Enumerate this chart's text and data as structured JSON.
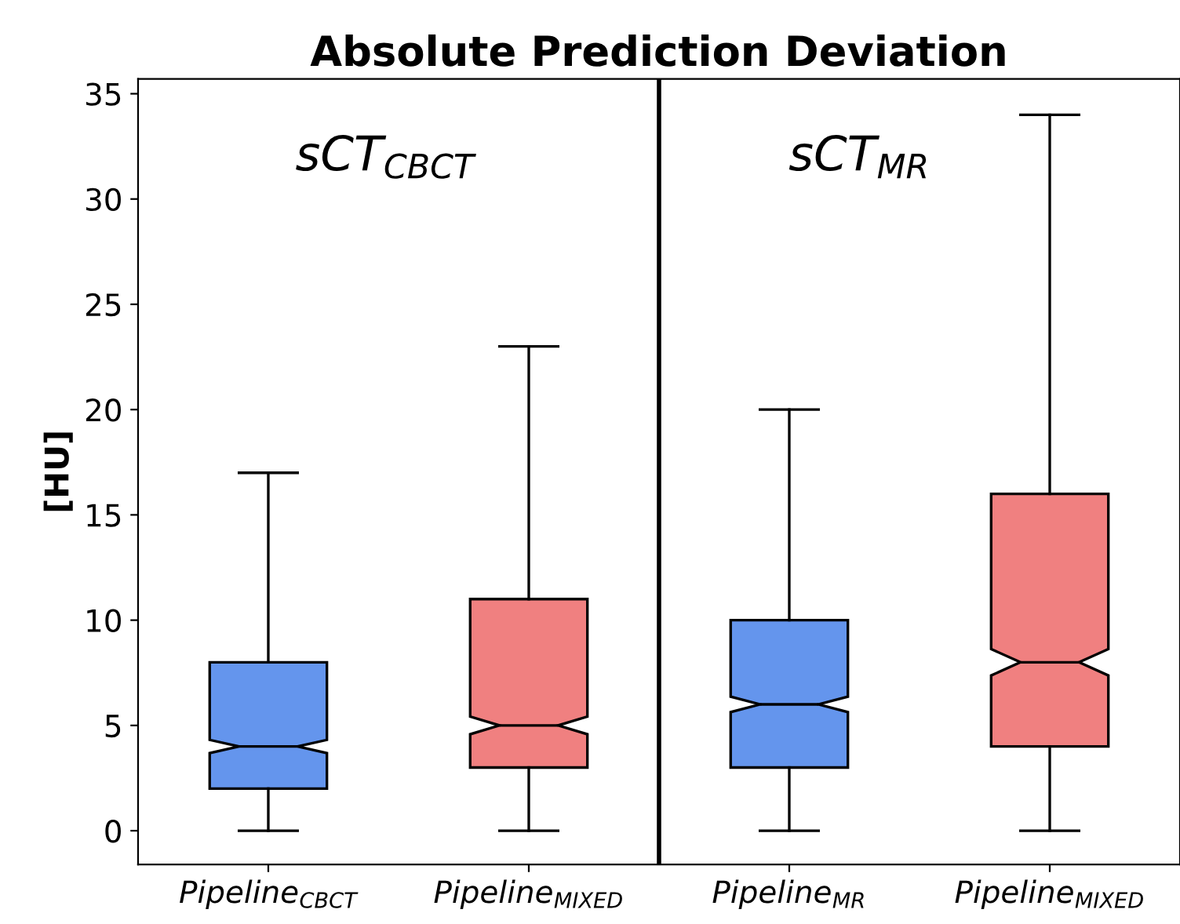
{
  "chart_data": {
    "type": "box",
    "title": "Absolute Prediction Deviation",
    "ylabel": "[HU]",
    "categories": [
      "Pipeline$_{CBCT}$",
      "Pipeline$_{MIXED}$",
      "Pipeline$_{MR}$",
      "Pipeline$_{MIXED}$"
    ],
    "colors": [
      "#6495ed",
      "#f08080",
      "#6495ed",
      "#f08080"
    ],
    "boxes": [
      {
        "low": 0,
        "q1": 2,
        "median": 4,
        "q3": 8,
        "high": 17
      },
      {
        "low": 0,
        "q1": 3,
        "median": 5,
        "q3": 11,
        "high": 23
      },
      {
        "low": 0,
        "q1": 3,
        "median": 6,
        "q3": 10,
        "high": 20
      },
      {
        "low": 0,
        "q1": 4,
        "median": 8,
        "q3": 16,
        "high": 34
      }
    ],
    "ylim": [
      -1.6,
      35.7
    ],
    "yticks": [
      0,
      5,
      10,
      15,
      20,
      25,
      30,
      35
    ],
    "annotations": [
      "sCT$_{CBCT}$",
      "sCT$_{MR}$"
    ],
    "grid": false,
    "legend": false
  }
}
